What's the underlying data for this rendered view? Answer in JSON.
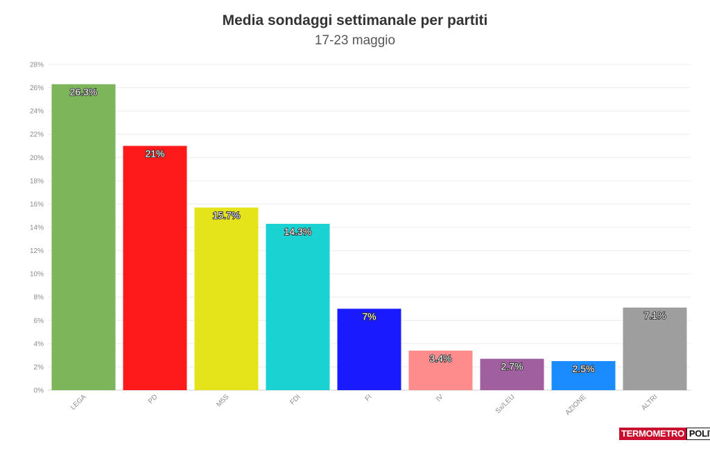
{
  "title": "Media sondaggi settimanale per partiti",
  "subtitle": "17-23 maggio",
  "logo": {
    "part1": "TERMOMETRO",
    "part2": "POLITICO",
    "colors": {
      "part1_bg": "#c8102e",
      "part2_bg": "#ffffff"
    }
  },
  "chart_data": {
    "type": "bar",
    "title": "Media sondaggi settimanale per partiti",
    "subtitle": "17-23 maggio",
    "xlabel": "",
    "ylabel": "",
    "ylim": [
      0,
      28
    ],
    "yticks": [
      "0%",
      "2%",
      "4%",
      "6%",
      "8%",
      "10%",
      "12%",
      "14%",
      "16%",
      "18%",
      "20%",
      "22%",
      "24%",
      "26%",
      "28%"
    ],
    "grid": true,
    "legend": "none",
    "categories": [
      "LEGA",
      "PD",
      "M5S",
      "FDI",
      "FI",
      "IV",
      "Sx/LEU",
      "AZIONE",
      "ALTRI"
    ],
    "values": [
      26.3,
      21,
      15.7,
      14.3,
      7,
      3.4,
      2.7,
      2.5,
      7.1
    ],
    "data_labels": [
      "26.3%",
      "21%",
      "15.7%",
      "14.3%",
      "7%",
      "3.4%",
      "2.7%",
      "2.5%",
      "7.1%"
    ],
    "colors": [
      "#7db55a",
      "#fe1a1a",
      "#e5e31a",
      "#1ad2d2",
      "#1a1aff",
      "#ff8c8c",
      "#a0609f",
      "#1a8cff",
      "#9e9e9e"
    ]
  }
}
